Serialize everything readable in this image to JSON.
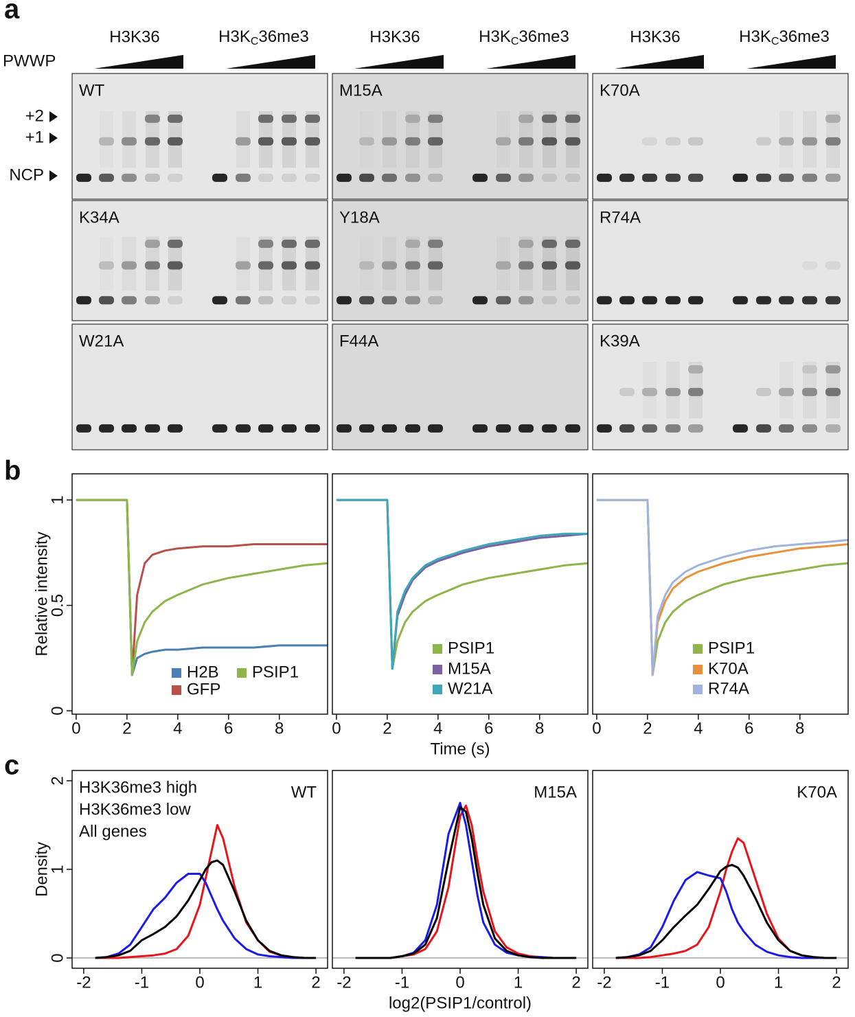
{
  "figure": {
    "panel_labels": [
      "a",
      "b",
      "c"
    ],
    "pwwp": "PWWP",
    "groups": [
      "H3K36",
      [
        "H3K",
        "C",
        "36me3"
      ]
    ],
    "markers": [
      "+2",
      "+1",
      "NCP"
    ],
    "gels": [
      [
        "WT",
        "M15A",
        "K70A"
      ],
      [
        "K34A",
        "Y18A",
        "R74A"
      ],
      [
        "W21A",
        "F44A",
        "K39A"
      ]
    ]
  },
  "chart_data": [
    {
      "type": "line",
      "x": [
        0,
        1,
        2,
        2.2,
        2.4,
        2.7,
        3,
        3.5,
        4,
        5,
        6,
        7,
        8,
        9,
        9.9
      ],
      "series": [
        {
          "name": "H2B",
          "color": "#4a7fb5",
          "values": [
            1,
            1,
            1,
            0.17,
            0.25,
            0.27,
            0.28,
            0.29,
            0.29,
            0.3,
            0.3,
            0.3,
            0.31,
            0.31,
            0.31
          ]
        },
        {
          "name": "GFP",
          "color": "#b8504a",
          "values": [
            1,
            1,
            1,
            0.17,
            0.55,
            0.7,
            0.74,
            0.76,
            0.77,
            0.78,
            0.78,
            0.79,
            0.79,
            0.79,
            0.79
          ]
        },
        {
          "name": "PSIP1",
          "color": "#8db54a",
          "values": [
            1,
            1,
            1,
            0.17,
            0.33,
            0.42,
            0.47,
            0.52,
            0.55,
            0.6,
            0.63,
            0.65,
            0.67,
            0.69,
            0.7
          ]
        }
      ],
      "xlim": [
        -0.16,
        9.9
      ],
      "ylim": [
        -0.016,
        1.124
      ],
      "xticks": [
        0,
        2,
        4,
        6,
        8
      ],
      "yticks": [
        0,
        0.5,
        1
      ],
      "y_label": "Relative intensity"
    },
    {
      "type": "line",
      "x": [
        0,
        1,
        2,
        2.2,
        2.4,
        2.7,
        3,
        3.5,
        4,
        5,
        6,
        7,
        8,
        9,
        9.9
      ],
      "series": [
        {
          "name": "PSIP1",
          "color": "#8db54a",
          "values": [
            1,
            1,
            1,
            0.2,
            0.33,
            0.42,
            0.47,
            0.52,
            0.55,
            0.6,
            0.63,
            0.65,
            0.67,
            0.69,
            0.7
          ]
        },
        {
          "name": "M15A",
          "color": "#7b62a3",
          "values": [
            1,
            1,
            1,
            0.2,
            0.45,
            0.55,
            0.62,
            0.68,
            0.71,
            0.75,
            0.78,
            0.8,
            0.82,
            0.83,
            0.84
          ]
        },
        {
          "name": "W21A",
          "color": "#3ba7b8",
          "values": [
            1,
            1,
            1,
            0.2,
            0.47,
            0.57,
            0.63,
            0.69,
            0.72,
            0.76,
            0.79,
            0.81,
            0.83,
            0.84,
            0.84
          ]
        }
      ],
      "xlim": [
        -0.16,
        9.9
      ],
      "ylim": [
        -0.016,
        1.124
      ],
      "xticks": [
        0,
        2,
        4,
        6,
        8
      ],
      "x_label": "Time (s)"
    },
    {
      "type": "line",
      "x": [
        0,
        1,
        2,
        2.2,
        2.4,
        2.7,
        3,
        3.5,
        4,
        5,
        6,
        7,
        8,
        9,
        9.9
      ],
      "series": [
        {
          "name": "PSIP1",
          "color": "#8db54a",
          "values": [
            1,
            1,
            1,
            0.17,
            0.33,
            0.42,
            0.47,
            0.52,
            0.55,
            0.6,
            0.63,
            0.65,
            0.67,
            0.69,
            0.7
          ]
        },
        {
          "name": "K70A",
          "color": "#e8913c",
          "values": [
            1,
            1,
            1,
            0.17,
            0.42,
            0.52,
            0.58,
            0.63,
            0.66,
            0.7,
            0.73,
            0.75,
            0.77,
            0.78,
            0.79
          ]
        },
        {
          "name": "R74A",
          "color": "#9fb3dc",
          "values": [
            1,
            1,
            1,
            0.17,
            0.45,
            0.55,
            0.61,
            0.66,
            0.69,
            0.73,
            0.76,
            0.78,
            0.79,
            0.8,
            0.81
          ]
        }
      ],
      "xlim": [
        -0.16,
        9.9
      ],
      "ylim": [
        -0.016,
        1.124
      ],
      "xticks": [
        0,
        2,
        4,
        6,
        8
      ]
    },
    {
      "type": "line",
      "title": "WT",
      "x": [
        -1.8,
        -1.6,
        -1.4,
        -1.2,
        -1,
        -0.8,
        -0.6,
        -0.4,
        -0.2,
        0,
        0.1,
        0.2,
        0.3,
        0.4,
        0.6,
        0.8,
        1,
        1.2,
        1.4,
        1.6,
        1.8,
        2
      ],
      "series": [
        {
          "name": "H3K36me3 high",
          "color": "#e8141b",
          "values": [
            0,
            0,
            0,
            0.01,
            0.02,
            0.03,
            0.05,
            0.1,
            0.25,
            0.6,
            0.9,
            1.2,
            1.5,
            1.35,
            0.8,
            0.4,
            0.2,
            0.07,
            0.03,
            0.01,
            0,
            0
          ]
        },
        {
          "name": "H3K36me3 low",
          "color": "#1a1aeb",
          "values": [
            0,
            0.01,
            0.05,
            0.15,
            0.35,
            0.55,
            0.68,
            0.85,
            0.95,
            0.95,
            0.85,
            0.7,
            0.55,
            0.42,
            0.22,
            0.1,
            0.04,
            0.02,
            0.01,
            0,
            0,
            0
          ]
        },
        {
          "name": "All genes",
          "color": "#000000",
          "values": [
            0,
            0.01,
            0.03,
            0.08,
            0.2,
            0.27,
            0.35,
            0.47,
            0.65,
            0.88,
            1,
            1.08,
            1.1,
            1.05,
            0.75,
            0.42,
            0.2,
            0.08,
            0.03,
            0.01,
            0,
            0
          ]
        }
      ],
      "xlim": [
        -2.2,
        2.2
      ],
      "ylim": [
        -0.116,
        2.116
      ],
      "xticks": [
        -2,
        -1,
        0,
        1,
        2
      ],
      "yticks": [
        0,
        1,
        2
      ],
      "zero_line": true,
      "y_label": "Density"
    },
    {
      "type": "line",
      "title": "M15A",
      "x": [
        -1.8,
        -1.6,
        -1.4,
        -1.2,
        -1,
        -0.8,
        -0.6,
        -0.4,
        -0.2,
        0,
        0.1,
        0.2,
        0.3,
        0.4,
        0.6,
        0.8,
        1,
        1.2,
        1.4,
        1.6,
        1.8,
        2
      ],
      "series": [
        {
          "color": "#e8141b",
          "values": [
            0,
            0,
            0,
            0,
            0.02,
            0.04,
            0.1,
            0.3,
            0.8,
            1.6,
            1.72,
            1.5,
            1.1,
            0.75,
            0.3,
            0.12,
            0.05,
            0.02,
            0.01,
            0,
            0,
            0
          ]
        },
        {
          "color": "#1a1aeb",
          "values": [
            0,
            0,
            0,
            0,
            0.02,
            0.06,
            0.2,
            0.6,
            1.4,
            1.75,
            1.5,
            1.1,
            0.7,
            0.4,
            0.15,
            0.06,
            0.03,
            0.01,
            0.01,
            0,
            0,
            0
          ]
        },
        {
          "color": "#000000",
          "values": [
            0,
            0,
            0,
            0,
            0.02,
            0.05,
            0.15,
            0.45,
            1.1,
            1.7,
            1.65,
            1.35,
            0.95,
            0.6,
            0.22,
            0.08,
            0.03,
            0.01,
            0,
            0,
            0,
            0
          ]
        }
      ],
      "xlim": [
        -2.2,
        2.2
      ],
      "ylim": [
        -0.116,
        2.116
      ],
      "xticks": [
        -2,
        -1,
        0,
        1,
        2
      ],
      "zero_line": true,
      "x_label": "log2(PSIP1/control)"
    },
    {
      "type": "line",
      "title": "K70A",
      "x": [
        -1.8,
        -1.6,
        -1.4,
        -1.2,
        -1,
        -0.8,
        -0.6,
        -0.4,
        -0.2,
        0,
        0.1,
        0.2,
        0.3,
        0.4,
        0.6,
        0.8,
        1,
        1.2,
        1.4,
        1.6,
        1.8,
        2
      ],
      "series": [
        {
          "color": "#e8141b",
          "values": [
            0,
            0,
            0,
            0.01,
            0.03,
            0.05,
            0.08,
            0.15,
            0.35,
            0.75,
            1,
            1.2,
            1.35,
            1.3,
            0.9,
            0.5,
            0.22,
            0.08,
            0.03,
            0.01,
            0,
            0
          ]
        },
        {
          "color": "#1a1aeb",
          "values": [
            0,
            0.01,
            0.04,
            0.12,
            0.35,
            0.65,
            0.88,
            0.97,
            0.93,
            0.9,
            0.75,
            0.55,
            0.4,
            0.3,
            0.15,
            0.07,
            0.03,
            0.01,
            0,
            0,
            0,
            0
          ]
        },
        {
          "color": "#000000",
          "values": [
            0,
            0.01,
            0.03,
            0.08,
            0.2,
            0.35,
            0.48,
            0.6,
            0.78,
            0.98,
            1.03,
            1.05,
            1.02,
            0.93,
            0.68,
            0.4,
            0.2,
            0.08,
            0.03,
            0.01,
            0,
            0
          ]
        }
      ],
      "xlim": [
        -2.2,
        2.2
      ],
      "ylim": [
        -0.116,
        2.116
      ],
      "xticks": [
        -2,
        -1,
        0,
        1,
        2
      ],
      "zero_line": true
    }
  ]
}
